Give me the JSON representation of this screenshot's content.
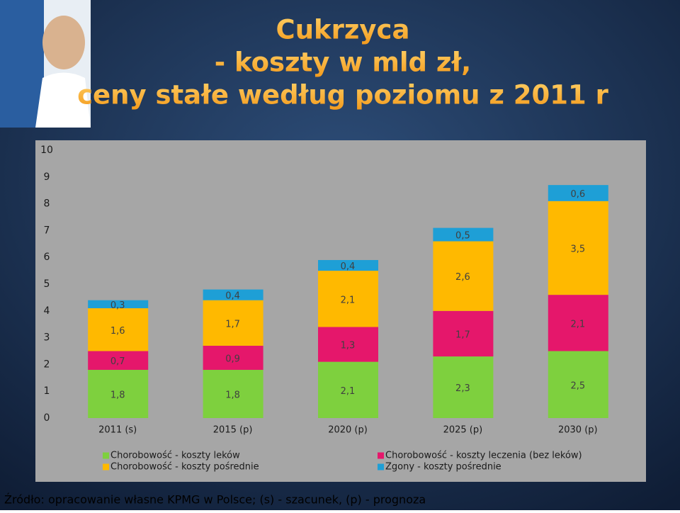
{
  "chart_data": {
    "type": "stacked-bar",
    "title": [
      "Cukrzyca",
      "- koszty w mld zł,",
      "ceny stałe według poziomu z 2011 r"
    ],
    "categories": [
      "2011 (s)",
      "2015 (p)",
      "2020 (p)",
      "2025 (p)",
      "2030 (p)"
    ],
    "series": [
      {
        "name": "Chorobowość - koszty leków",
        "color": "#7ed03e",
        "values": [
          1.8,
          1.8,
          2.1,
          2.3,
          2.5
        ],
        "value_labels": [
          "1,8",
          "1,8",
          "2,1",
          "2,3",
          "2,5"
        ]
      },
      {
        "name": "Chorobowość - koszty leczenia (bez leków)",
        "color": "#e5176b",
        "values": [
          0.7,
          0.9,
          1.3,
          1.7,
          2.1
        ],
        "value_labels": [
          "0,7",
          "0,9",
          "1,3",
          "1,7",
          "2,1"
        ]
      },
      {
        "name": "Chorobowość - koszty pośrednie",
        "color": "#ffb900",
        "values": [
          1.6,
          1.7,
          2.1,
          2.6,
          3.5
        ],
        "value_labels": [
          "1,6",
          "1,7",
          "2,1",
          "2,6",
          "3,5"
        ]
      },
      {
        "name": "Zgony - koszty pośrednie",
        "color": "#1e9fd6",
        "values": [
          0.3,
          0.4,
          0.4,
          0.5,
          0.6
        ],
        "value_labels": [
          "0,3",
          "0,4",
          "0,4",
          "0,5",
          "0,6"
        ]
      }
    ],
    "ylim": [
      0,
      10
    ],
    "yticks": [
      0,
      1,
      2,
      3,
      4,
      5,
      6,
      7,
      8,
      9,
      10
    ],
    "grid": false,
    "source": "Źródło: opracowanie własne KPMG w Polsce; (s) - szacunek, (p) - prognoza"
  }
}
